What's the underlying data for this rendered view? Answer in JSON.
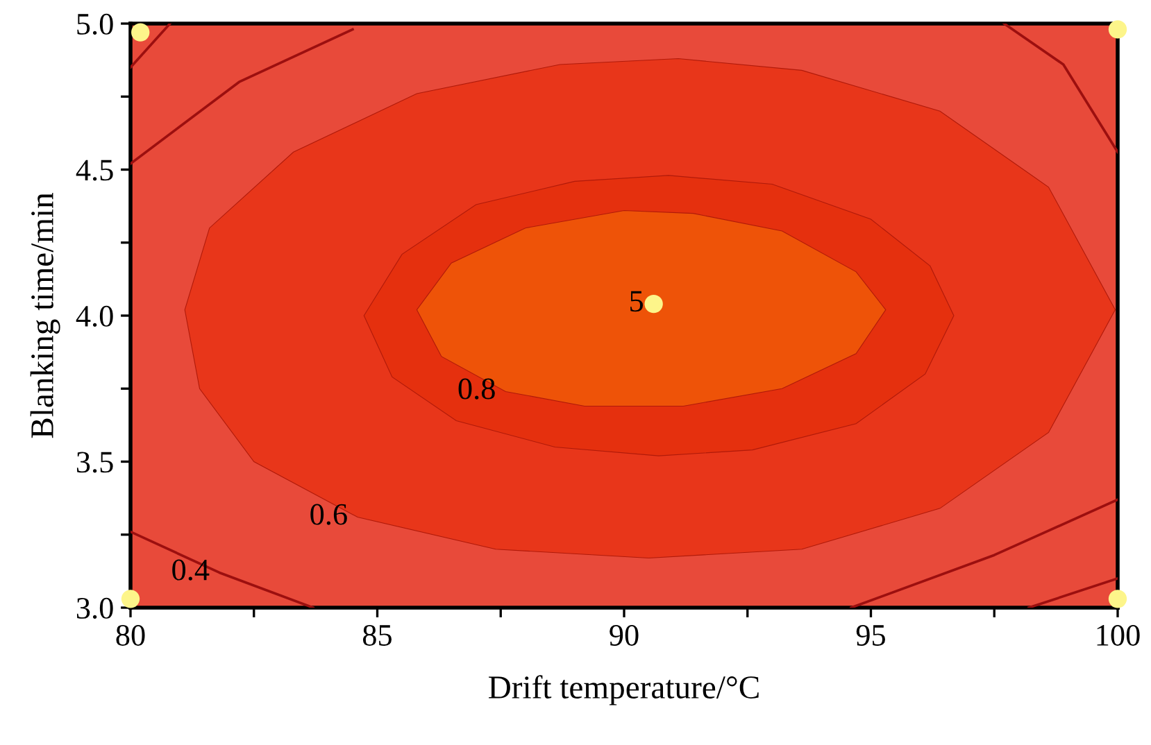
{
  "chart_data": {
    "type": "scatter",
    "xlabel": "Drift temperature/°C",
    "ylabel": "Blanking time/min",
    "xlim": [
      80,
      100
    ],
    "ylim": [
      3.0,
      5.0
    ],
    "xticks": [
      80,
      {
        "value": 82.5,
        "label": null
      },
      85,
      {
        "value": 87.5,
        "label": null
      },
      90,
      {
        "value": 92.5,
        "label": null
      },
      95,
      {
        "value": 97.5,
        "label": null
      },
      100
    ],
    "yticks": [
      {
        "value": 3.0,
        "label": "3.0"
      },
      {
        "value": 3.25,
        "label": null
      },
      {
        "value": 3.5,
        "label": "3.5"
      },
      {
        "value": 3.75,
        "label": null
      },
      {
        "value": 4.0,
        "label": "4.0"
      },
      {
        "value": 4.25,
        "label": null
      },
      {
        "value": 4.5,
        "label": "4.5"
      },
      {
        "value": 4.75,
        "label": null
      },
      {
        "value": 5.0,
        "label": "5.0"
      }
    ],
    "bands": [
      {
        "axis": "y",
        "from": 3.0,
        "to": 5.0,
        "color": "#e84a3a"
      }
    ],
    "series": [
      {
        "type": "area",
        "color": "#e8361a",
        "x": [
          81.1,
          81.6,
          83.3,
          85.8,
          88.7,
          91.1,
          93.6,
          96.4,
          98.6,
          99.95,
          98.6,
          96.4,
          93.6,
          90.5,
          87.4,
          84.6,
          82.5,
          81.4
        ],
        "values": [
          4.02,
          4.3,
          4.56,
          4.76,
          4.86,
          4.88,
          4.84,
          4.7,
          4.44,
          4.02,
          3.6,
          3.34,
          3.2,
          3.17,
          3.2,
          3.31,
          3.5,
          3.75
        ]
      },
      {
        "type": "area",
        "color": "#e5300e",
        "x": [
          84.73,
          85.5,
          87.0,
          89.0,
          90.9,
          93.0,
          95.0,
          96.2,
          96.68,
          96.1,
          94.7,
          92.6,
          90.7,
          88.6,
          86.6,
          85.3
        ],
        "values": [
          4.0,
          4.21,
          4.38,
          4.46,
          4.48,
          4.45,
          4.33,
          4.17,
          4.0,
          3.8,
          3.63,
          3.54,
          3.52,
          3.55,
          3.64,
          3.79
        ]
      },
      {
        "type": "area",
        "color": "#ee5308",
        "x": [
          85.8,
          86.5,
          88.0,
          90.0,
          91.4,
          93.2,
          94.7,
          95.3,
          94.7,
          93.2,
          91.2,
          89.2,
          87.6,
          86.3
        ],
        "values": [
          4.02,
          4.18,
          4.3,
          4.36,
          4.35,
          4.29,
          4.15,
          4.02,
          3.87,
          3.75,
          3.69,
          3.69,
          3.74,
          3.86
        ]
      },
      {
        "type": "line",
        "color": "#9c0f0f",
        "x": [
          80.0,
          82.2,
          84.5
        ],
        "values": [
          4.52,
          4.8,
          4.98
        ]
      },
      {
        "type": "line",
        "color": "#9c0f0f",
        "x": [
          80.0,
          80.8
        ],
        "values": [
          4.85,
          5.0
        ]
      },
      {
        "type": "line",
        "color": "#9c0f0f",
        "x": [
          80.0,
          81.8,
          83.7
        ],
        "values": [
          3.26,
          3.12,
          3.0
        ]
      },
      {
        "type": "line",
        "color": "#9c0f0f",
        "x": [
          94.6,
          97.5,
          100.0
        ],
        "values": [
          3.0,
          3.18,
          3.37
        ]
      },
      {
        "type": "line",
        "color": "#9c0f0f",
        "x": [
          98.2,
          100.0
        ],
        "values": [
          3.0,
          3.1
        ]
      },
      {
        "type": "line",
        "color": "#9c0f0f",
        "x": [
          97.7,
          98.9,
          100.0
        ],
        "values": [
          5.0,
          4.86,
          4.56
        ]
      },
      {
        "color": "#fdf58a",
        "marker": "circle",
        "x": [
          80.2,
          80.0,
          100.0,
          100.0,
          90.6
        ],
        "values": [
          4.97,
          3.03,
          4.98,
          3.03,
          4.04
        ]
      }
    ],
    "annotations": [
      {
        "text": "0.4",
        "x": 81.8,
        "y": 3.12
      },
      {
        "text": "0.6",
        "x": 84.6,
        "y": 3.31
      },
      {
        "text": "0.8",
        "x": 87.6,
        "y": 3.74
      },
      {
        "text": "5",
        "x": 90.6,
        "y": 4.04
      }
    ],
    "grid": false
  }
}
